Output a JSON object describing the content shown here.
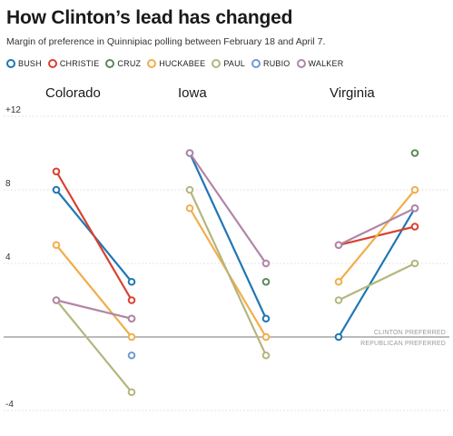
{
  "title": "How Clinton’s lead has changed",
  "subtitle": "Margin of preference in Quinnipiac polling between February 18 and April 7.",
  "legend": [
    {
      "label": "BUSH",
      "color": "#1f77b4"
    },
    {
      "label": "CHRISTIE",
      "color": "#d8412f"
    },
    {
      "label": "CRUZ",
      "color": "#5a8a5a"
    },
    {
      "label": "HUCKABEE",
      "color": "#f2ae4a"
    },
    {
      "label": "PAUL",
      "color": "#b5b67e"
    },
    {
      "label": "RUBIO",
      "color": "#6f9bd1"
    },
    {
      "label": "WALKER",
      "color": "#b285a6"
    }
  ],
  "annotations": {
    "above": "CLINTON PREFERRED",
    "below": "REPUBLICAN PREFERRED"
  },
  "chart_data": {
    "type": "line",
    "ylim": [
      -4,
      12
    ],
    "yticks": [
      {
        "value": 12,
        "label": "+12"
      },
      {
        "value": 8,
        "label": "8"
      },
      {
        "value": 4,
        "label": "4"
      },
      {
        "value": -4,
        "label": "-4"
      }
    ],
    "x": [
      "February 18",
      "April 7"
    ],
    "panels": [
      {
        "name": "Colorado",
        "series": [
          {
            "name": "BUSH",
            "values": [
              8,
              3
            ]
          },
          {
            "name": "CHRISTIE",
            "values": [
              9,
              2
            ]
          },
          {
            "name": "CRUZ",
            "values": [
              null,
              1
            ]
          },
          {
            "name": "HUCKABEE",
            "values": [
              5,
              0
            ]
          },
          {
            "name": "PAUL",
            "values": [
              2,
              -3
            ]
          },
          {
            "name": "RUBIO",
            "values": [
              null,
              -1
            ]
          },
          {
            "name": "WALKER",
            "values": [
              2,
              1
            ]
          }
        ]
      },
      {
        "name": "Iowa",
        "series": [
          {
            "name": "BUSH",
            "values": [
              10,
              1
            ]
          },
          {
            "name": "CHRISTIE",
            "values": [
              null,
              null
            ]
          },
          {
            "name": "CRUZ",
            "values": [
              null,
              3
            ]
          },
          {
            "name": "HUCKABEE",
            "values": [
              7,
              0
            ]
          },
          {
            "name": "PAUL",
            "values": [
              8,
              -1
            ]
          },
          {
            "name": "RUBIO",
            "values": [
              null,
              null
            ]
          },
          {
            "name": "WALKER",
            "values": [
              10,
              4
            ]
          }
        ]
      },
      {
        "name": "Virginia",
        "series": [
          {
            "name": "BUSH",
            "values": [
              0,
              7
            ]
          },
          {
            "name": "CHRISTIE",
            "values": [
              5,
              6
            ]
          },
          {
            "name": "CRUZ",
            "values": [
              null,
              10
            ]
          },
          {
            "name": "HUCKABEE",
            "values": [
              3,
              8
            ]
          },
          {
            "name": "PAUL",
            "values": [
              2,
              4
            ]
          },
          {
            "name": "RUBIO",
            "values": [
              null,
              null
            ]
          },
          {
            "name": "WALKER",
            "values": [
              5,
              7
            ]
          }
        ]
      }
    ]
  }
}
